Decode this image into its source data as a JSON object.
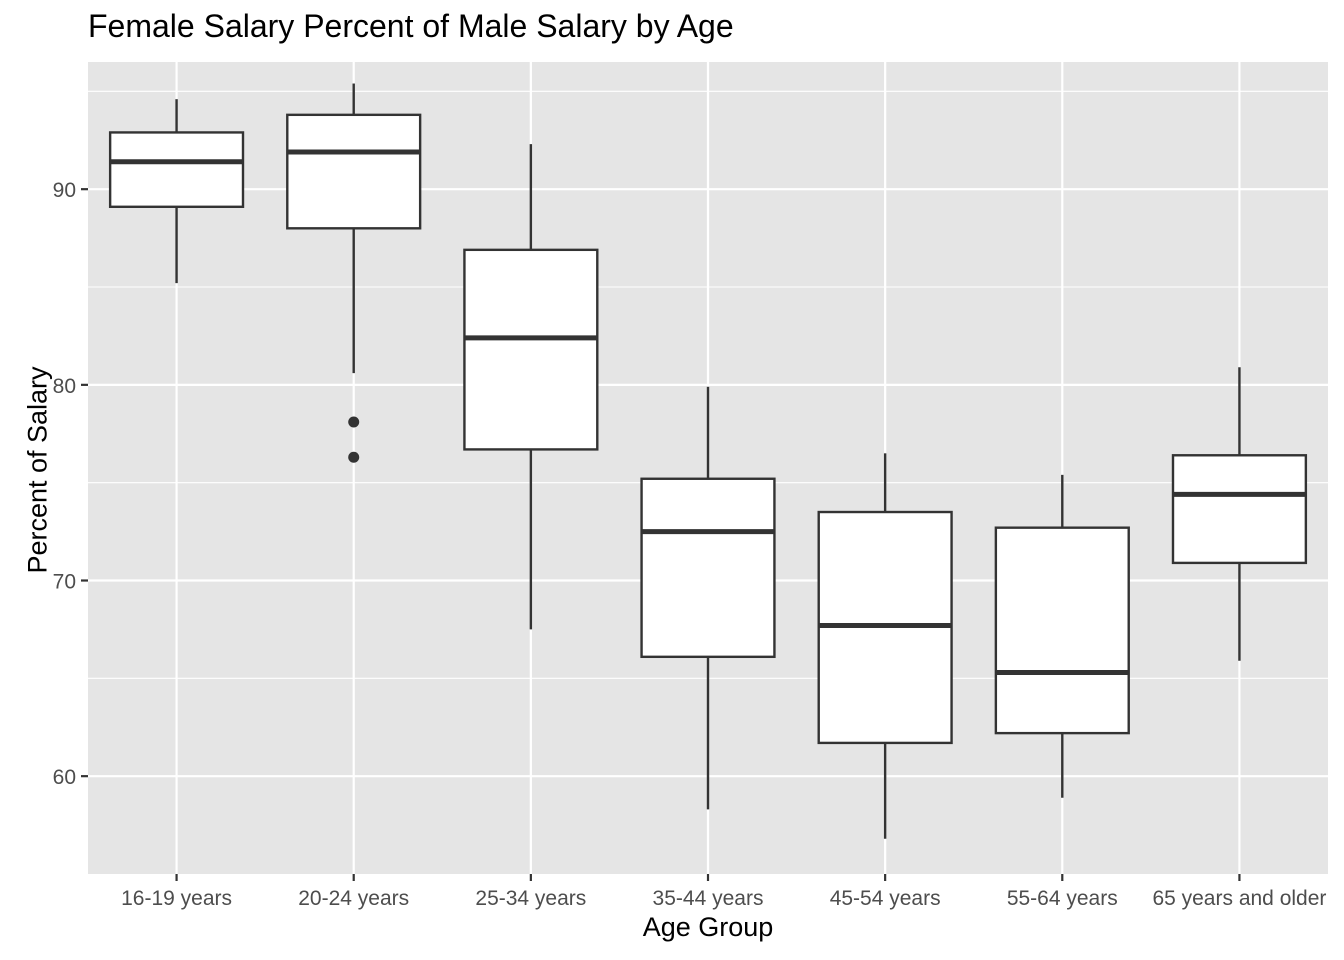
{
  "chart_data": {
    "type": "boxplot",
    "title": "Female Salary Percent of Male Salary by Age",
    "xlabel": "Age Group",
    "ylabel": "Percent of Salary",
    "categories": [
      "16-19 years",
      "20-24 years",
      "25-34 years",
      "35-44 years",
      "45-54 years",
      "55-64 years",
      "65 years and older"
    ],
    "boxes": [
      {
        "whisker_low": 85.2,
        "q1": 89.1,
        "median": 91.4,
        "q3": 92.9,
        "whisker_high": 94.6,
        "outliers": []
      },
      {
        "whisker_low": 80.6,
        "q1": 88.0,
        "median": 91.9,
        "q3": 93.8,
        "whisker_high": 95.4,
        "outliers": [
          78.1,
          76.3
        ]
      },
      {
        "whisker_low": 67.5,
        "q1": 76.7,
        "median": 82.4,
        "q3": 86.9,
        "whisker_high": 92.3,
        "outliers": []
      },
      {
        "whisker_low": 58.3,
        "q1": 66.1,
        "median": 72.5,
        "q3": 75.2,
        "whisker_high": 79.9,
        "outliers": []
      },
      {
        "whisker_low": 56.8,
        "q1": 61.7,
        "median": 67.7,
        "q3": 73.5,
        "whisker_high": 76.5,
        "outliers": []
      },
      {
        "whisker_low": 58.9,
        "q1": 62.2,
        "median": 65.3,
        "q3": 72.7,
        "whisker_high": 75.4,
        "outliers": []
      },
      {
        "whisker_low": 65.9,
        "q1": 70.9,
        "median": 74.4,
        "q3": 76.4,
        "whisker_high": 80.9,
        "outliers": []
      }
    ],
    "y_ticks": [
      60,
      70,
      80,
      90
    ],
    "y_tick_labels": [
      "60",
      "70",
      "80",
      "90"
    ],
    "ylim": [
      55,
      96.5
    ],
    "grid": true,
    "legend": "none",
    "colors": {
      "panel_background": "#e5e5e5",
      "grid": "#ffffff",
      "box_fill": "#ffffff",
      "box_stroke": "#333333",
      "tick_label": "#4d4d4d",
      "tick_mark": "#333333"
    }
  }
}
